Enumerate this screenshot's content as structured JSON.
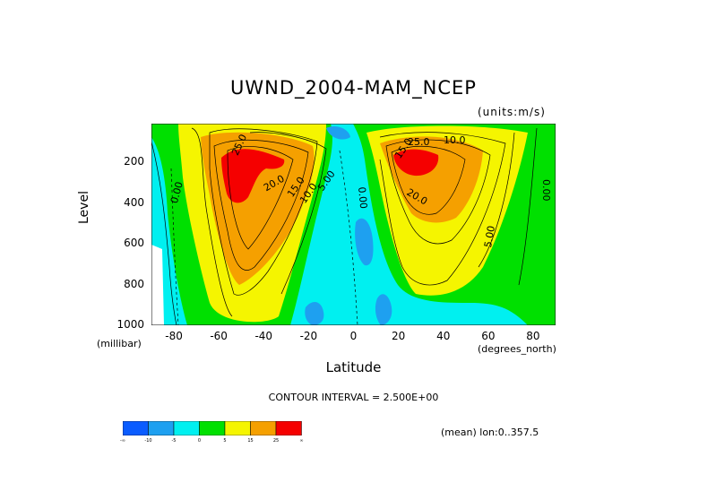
{
  "title": "UWND_2004-MAM_NCEP",
  "units_label": "(units:m/s)",
  "footer": {
    "contour_interval": "CONTOUR INTERVAL = 2.500E+00",
    "mean_info": "(mean) lon:0..357.5"
  },
  "colors": {
    "dark_blue": "#0a5cff",
    "blue": "#1ea0f0",
    "cyan": "#00f0f0",
    "green": "#00e000",
    "yellow": "#f5f500",
    "orange": "#f5a000",
    "red": "#f50000"
  },
  "colorbar": {
    "labels": [
      "-∞",
      "-10",
      "-5",
      "0",
      "5",
      "15",
      "25",
      "∞"
    ]
  },
  "chart_data": {
    "type": "heatmap",
    "title": "UWND_2004-MAM_NCEP",
    "units": "(units:m/s)",
    "xlabel": "Latitude",
    "xlabel_unit": "(degrees_north)",
    "ylabel": "Level",
    "ylabel_unit": "(millibar)",
    "xlim": [
      -90,
      90
    ],
    "ylim": [
      1000,
      10
    ],
    "x_ticks": [
      -80,
      -60,
      -40,
      -20,
      0,
      20,
      40,
      60,
      80
    ],
    "x_tick_labels": [
      "-80",
      "-60",
      "-40",
      "-20",
      "0",
      "20",
      "40",
      "60",
      "80"
    ],
    "y_ticks": [
      200,
      400,
      600,
      800,
      1000
    ],
    "y_tick_labels": [
      "200",
      "400",
      "600",
      "800",
      "1000"
    ],
    "contour_labels": [
      "25.0",
      "20.0",
      "15.0",
      "10.0",
      "5.00",
      "0.00",
      "0.00",
      "5.00",
      "10.0",
      "15.0",
      "20.0",
      "25.0",
      "0.00"
    ],
    "jets": [
      {
        "lat": -52,
        "level": 250,
        "peak": 27.5
      },
      {
        "lat": 30,
        "level": 200,
        "peak": 30
      }
    ],
    "grid": false,
    "legend": "bottom"
  }
}
